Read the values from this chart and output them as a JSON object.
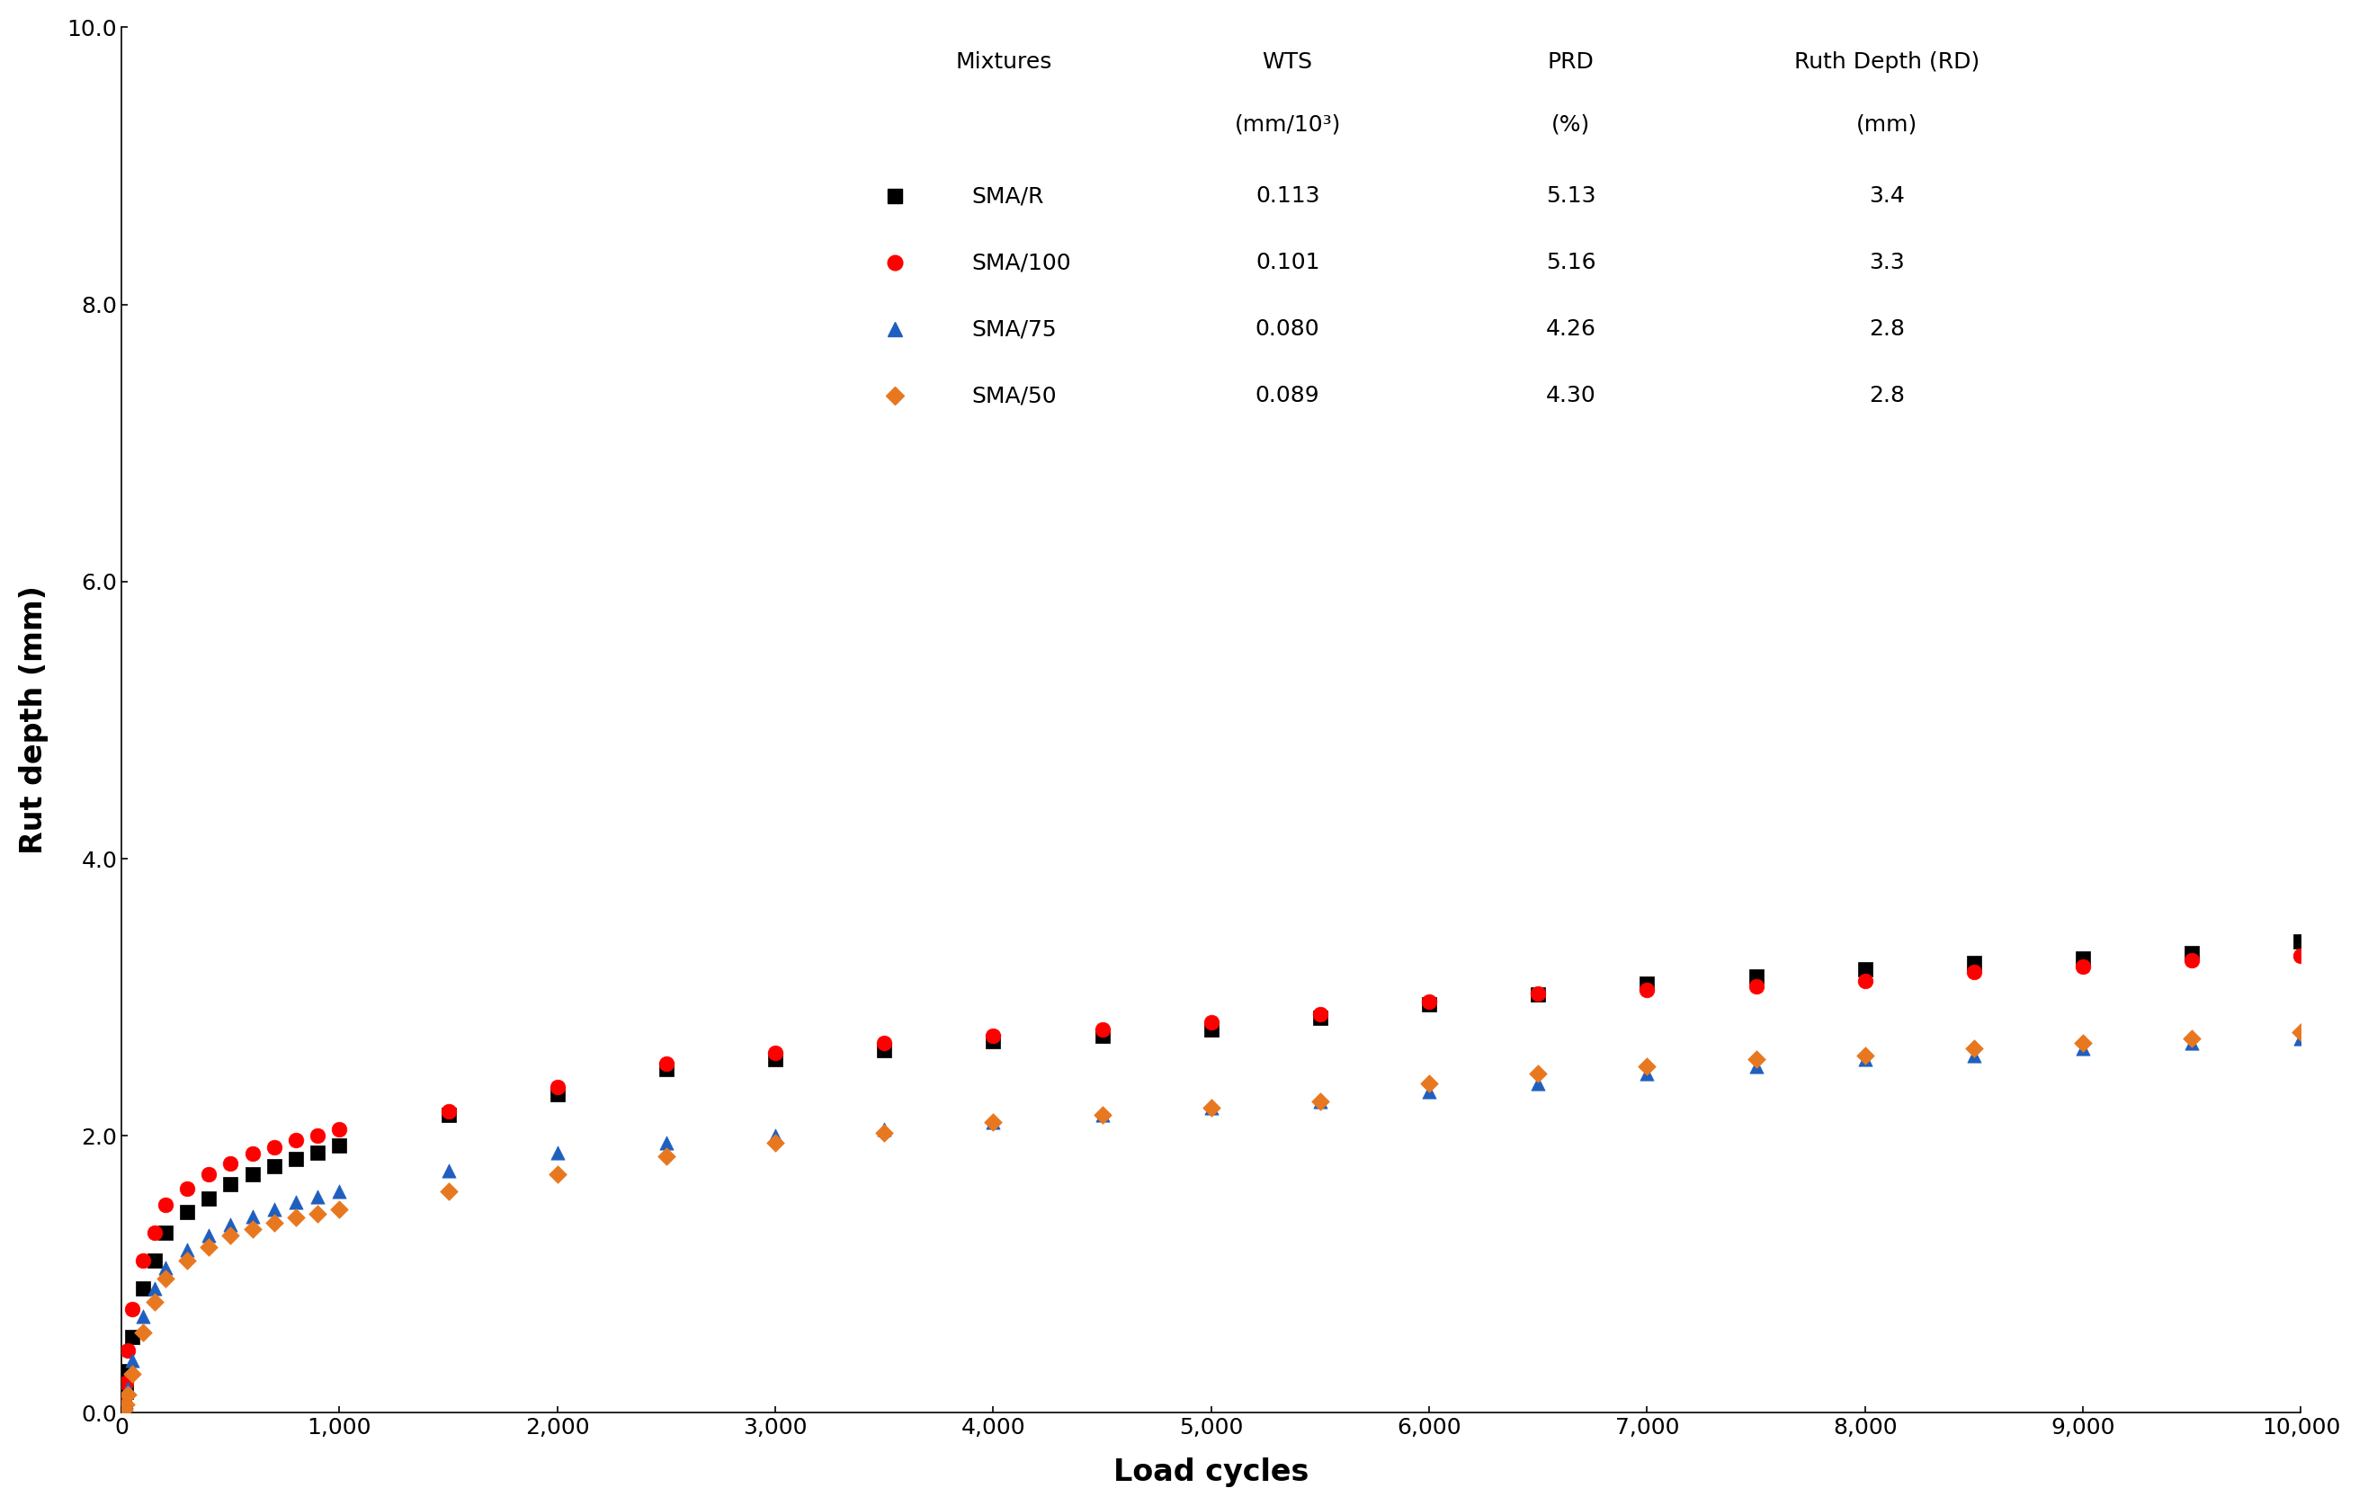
{
  "ylabel": "Rut depth (mm)",
  "xlabel": "Load cycles",
  "ylim": [
    0.0,
    10.0
  ],
  "xlim": [
    0,
    10000
  ],
  "yticks": [
    0.0,
    2.0,
    4.0,
    6.0,
    8.0,
    10.0
  ],
  "xticks": [
    0,
    1000,
    2000,
    3000,
    4000,
    5000,
    6000,
    7000,
    8000,
    9000,
    10000
  ],
  "xtick_labels": [
    "0",
    "1,000",
    "2,000",
    "3,000",
    "4,000",
    "5,000",
    "6,000",
    "7,000",
    "8,000",
    "9,000",
    "10,000"
  ],
  "series": [
    {
      "label": "SMA/R",
      "color": "#000000",
      "marker": "s",
      "markersize": 11,
      "wts": "0.113",
      "prd": "5.13",
      "rd": "3.4",
      "x": [
        10,
        20,
        30,
        50,
        100,
        150,
        200,
        300,
        400,
        500,
        600,
        700,
        800,
        900,
        1000,
        1500,
        2000,
        2500,
        3000,
        3500,
        4000,
        4500,
        5000,
        5500,
        6000,
        6500,
        7000,
        7500,
        8000,
        8500,
        9000,
        9500,
        10000
      ],
      "y": [
        0.05,
        0.15,
        0.3,
        0.55,
        0.9,
        1.1,
        1.3,
        1.45,
        1.55,
        1.65,
        1.72,
        1.78,
        1.83,
        1.88,
        1.93,
        2.15,
        2.3,
        2.48,
        2.55,
        2.62,
        2.68,
        2.72,
        2.77,
        2.85,
        2.95,
        3.02,
        3.1,
        3.15,
        3.2,
        3.25,
        3.28,
        3.32,
        3.4
      ]
    },
    {
      "label": "SMA/100",
      "color": "#FF0000",
      "marker": "o",
      "markersize": 12,
      "wts": "0.101",
      "prd": "5.16",
      "rd": "3.3",
      "x": [
        10,
        20,
        30,
        50,
        100,
        150,
        200,
        300,
        400,
        500,
        600,
        700,
        800,
        900,
        1000,
        1500,
        2000,
        2500,
        3000,
        3500,
        4000,
        4500,
        5000,
        5500,
        6000,
        6500,
        7000,
        7500,
        8000,
        8500,
        9000,
        9500,
        10000
      ],
      "y": [
        0.08,
        0.22,
        0.45,
        0.75,
        1.1,
        1.3,
        1.5,
        1.62,
        1.72,
        1.8,
        1.87,
        1.92,
        1.97,
        2.0,
        2.05,
        2.18,
        2.35,
        2.52,
        2.6,
        2.67,
        2.72,
        2.77,
        2.82,
        2.88,
        2.97,
        3.03,
        3.05,
        3.08,
        3.12,
        3.18,
        3.22,
        3.27,
        3.3
      ]
    },
    {
      "label": "SMA/75",
      "color": "#1F5FBF",
      "marker": "^",
      "markersize": 11,
      "wts": "0.080",
      "prd": "4.26",
      "rd": "2.8",
      "x": [
        10,
        20,
        30,
        50,
        100,
        150,
        200,
        300,
        400,
        500,
        600,
        700,
        800,
        900,
        1000,
        1500,
        2000,
        2500,
        3000,
        3500,
        4000,
        4500,
        5000,
        5500,
        6000,
        6500,
        7000,
        7500,
        8000,
        8500,
        9000,
        9500,
        10000
      ],
      "y": [
        0.03,
        0.08,
        0.18,
        0.38,
        0.7,
        0.9,
        1.05,
        1.18,
        1.28,
        1.36,
        1.42,
        1.47,
        1.52,
        1.56,
        1.6,
        1.75,
        1.88,
        1.95,
        2.0,
        2.05,
        2.1,
        2.15,
        2.2,
        2.25,
        2.32,
        2.38,
        2.45,
        2.5,
        2.55,
        2.58,
        2.63,
        2.67,
        2.7
      ]
    },
    {
      "label": "SMA/50",
      "color": "#E87820",
      "marker": "D",
      "markersize": 10,
      "wts": "0.089",
      "prd": "4.30",
      "rd": "2.8",
      "x": [
        10,
        20,
        30,
        50,
        100,
        150,
        200,
        300,
        400,
        500,
        600,
        700,
        800,
        900,
        1000,
        1500,
        2000,
        2500,
        3000,
        3500,
        4000,
        4500,
        5000,
        5500,
        6000,
        6500,
        7000,
        7500,
        8000,
        8500,
        9000,
        9500,
        10000
      ],
      "y": [
        0.02,
        0.06,
        0.13,
        0.28,
        0.58,
        0.8,
        0.97,
        1.1,
        1.2,
        1.28,
        1.33,
        1.37,
        1.41,
        1.44,
        1.47,
        1.6,
        1.72,
        1.85,
        1.95,
        2.02,
        2.1,
        2.15,
        2.2,
        2.25,
        2.38,
        2.45,
        2.5,
        2.55,
        2.58,
        2.63,
        2.67,
        2.7,
        2.75
      ]
    }
  ],
  "font_size_labels": 22,
  "font_size_ticks": 18,
  "font_size_table": 18
}
